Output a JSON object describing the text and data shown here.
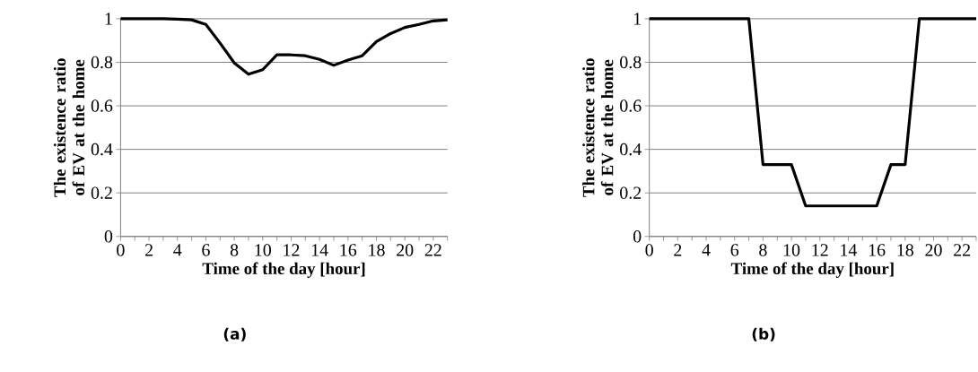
{
  "chart_data": [
    {
      "type": "line",
      "xlabel": "Time of the day [hour]",
      "ylabel": "The existence ratio of EV at the home",
      "categories": [
        "0",
        null,
        "2",
        null,
        "4",
        null,
        "6",
        null,
        "8",
        null,
        "10",
        null,
        "12",
        null,
        "14",
        null,
        "16",
        null,
        "18",
        null,
        "20",
        null,
        "22",
        null
      ],
      "values": [
        1,
        1,
        1,
        1,
        0.998,
        0.995,
        0.974,
        0.888,
        0.797,
        0.745,
        0.766,
        0.834,
        0.834,
        0.83,
        0.813,
        0.786,
        0.81,
        0.83,
        0.895,
        0.932,
        0.96,
        0.974,
        0.99,
        0.995
      ],
      "color": "#000000",
      "ylim": [
        0,
        1
      ],
      "yticks": [
        0,
        0.2,
        0.4,
        0.6,
        0.8,
        1
      ],
      "grid": "y",
      "marker": "none",
      "line_style": "solid",
      "annotations": [
        "(a)"
      ]
    },
    {
      "type": "line",
      "xlabel": "Time of the day [hour]",
      "ylabel": "The existence ratio of EV at the home",
      "categories": [
        "0",
        null,
        "2",
        null,
        "4",
        null,
        "6",
        null,
        "8",
        null,
        "10",
        null,
        "12",
        null,
        "14",
        null,
        "16",
        null,
        "18",
        null,
        "20",
        null,
        "22",
        null
      ],
      "values": [
        1,
        1,
        1,
        1,
        1,
        1,
        1,
        1,
        0.33,
        0.33,
        0.33,
        0.14,
        0.14,
        0.14,
        0.14,
        0.14,
        0.14,
        0.33,
        0.33,
        1,
        1,
        1,
        1,
        1
      ],
      "color": "#000000",
      "ylim": [
        0,
        1
      ],
      "yticks": [
        0,
        0.2,
        0.4,
        0.6,
        0.8,
        1
      ],
      "grid": "y",
      "marker": "none",
      "line_style": "solid",
      "annotations": [
        "(b)"
      ]
    }
  ]
}
